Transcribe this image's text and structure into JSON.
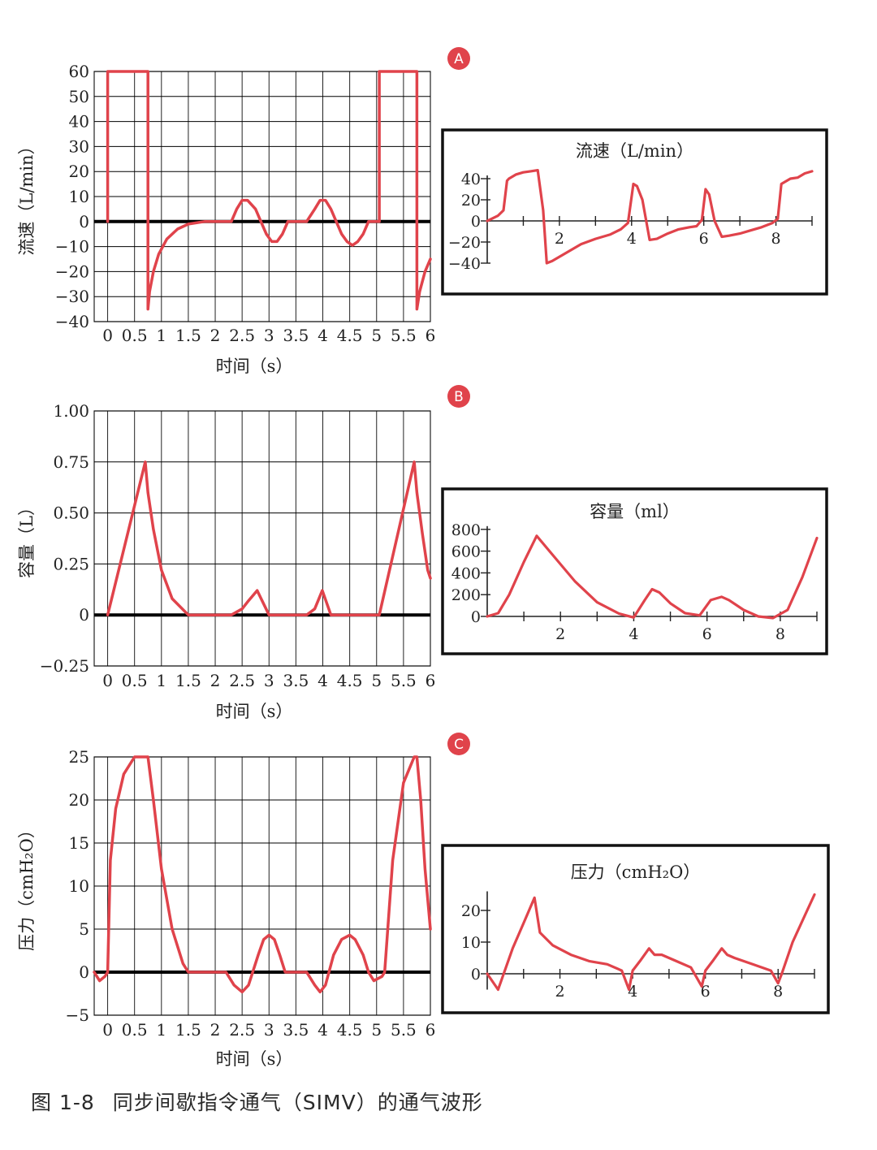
{
  "colors": {
    "curve": "#e0434b",
    "badge": "#e0434b",
    "axis": "#000000",
    "grid": "#222222"
  },
  "caption": {
    "figure_number": "图 1-8",
    "text": "同步间歇指令通气（SIMV）的通气波形"
  },
  "chart_data": [
    {
      "id": "A-main",
      "panel": "A",
      "type": "line",
      "ylabel": "流速（L/min）",
      "xlabel": "时间（s）",
      "xlim": [
        -0.25,
        6
      ],
      "ylim": [
        -40,
        60
      ],
      "xticks": [
        "0",
        "0.5",
        "1",
        "1.5",
        "2",
        "2.5",
        "3",
        "3.5",
        "4",
        "4.5",
        "5",
        "5.5",
        "6"
      ],
      "yticks": [
        "60",
        "50",
        "40",
        "30",
        "20",
        "10",
        "0",
        "−10",
        "−20",
        "−30",
        "−40"
      ],
      "x": [
        0,
        0,
        0.75,
        0.75,
        0.78,
        0.85,
        0.95,
        1.1,
        1.3,
        1.5,
        1.8,
        2.1,
        2.3,
        2.4,
        2.5,
        2.6,
        2.75,
        2.85,
        2.95,
        3.05,
        3.15,
        3.25,
        3.35,
        3.7,
        3.85,
        3.95,
        4.05,
        4.15,
        4.25,
        4.35,
        4.45,
        4.55,
        4.65,
        4.75,
        4.85,
        5.05,
        5.05,
        5.75,
        5.75,
        5.8,
        5.9,
        6
      ],
      "y": [
        0,
        60,
        60,
        -35,
        -28,
        -20,
        -13,
        -7,
        -3,
        -1,
        0,
        0,
        0,
        5,
        8.5,
        8.5,
        5,
        0,
        -5,
        -8,
        -8,
        -5,
        0,
        0,
        5,
        8.5,
        8.5,
        5,
        0,
        -5,
        -8,
        -9.5,
        -8,
        -5,
        0,
        0,
        60,
        60,
        -35,
        -28,
        -20,
        -15
      ]
    },
    {
      "id": "A-inset",
      "panel": "A",
      "type": "line",
      "title": "流速（L/min）",
      "xlim": [
        0,
        9
      ],
      "ylim": [
        -40,
        40
      ],
      "xticks": [
        "2",
        "4",
        "6",
        "8"
      ],
      "yticks": [
        "40",
        "20",
        "0",
        "−20",
        "−40"
      ],
      "x": [
        0,
        0.3,
        0.45,
        0.55,
        0.6,
        0.8,
        1.0,
        1.2,
        1.4,
        1.55,
        1.65,
        1.8,
        2.2,
        2.6,
        3.0,
        3.4,
        3.7,
        3.9,
        4.05,
        4.15,
        4.3,
        4.5,
        4.7,
        5.0,
        5.3,
        5.6,
        5.8,
        5.95,
        6.05,
        6.15,
        6.3,
        6.5,
        6.7,
        7.0,
        7.3,
        7.6,
        7.9,
        8.05,
        8.15,
        8.4,
        8.6,
        8.8,
        9
      ],
      "y": [
        0,
        5,
        10,
        38,
        40,
        44,
        46,
        47,
        48,
        10,
        -40,
        -38,
        -30,
        -22,
        -17,
        -13,
        -8,
        -2,
        35,
        33,
        20,
        -18,
        -17,
        -12,
        -8,
        -6,
        -5,
        1,
        30,
        25,
        0,
        -15,
        -14,
        -12,
        -9,
        -6,
        -2,
        2,
        35,
        40,
        41,
        45,
        47
      ]
    },
    {
      "id": "B-main",
      "panel": "B",
      "type": "line",
      "ylabel": "容量（L）",
      "xlabel": "时间（s）",
      "xlim": [
        -0.25,
        6
      ],
      "ylim": [
        -0.25,
        1.0
      ],
      "xticks": [
        "0",
        "0.5",
        "1",
        "1.5",
        "2",
        "2.5",
        "3",
        "3.5",
        "4",
        "4.5",
        "5",
        "5.5",
        "6"
      ],
      "yticks": [
        "1.00",
        "0.75",
        "0.50",
        "0.25",
        "0",
        "−0.25"
      ],
      "x": [
        0,
        0.7,
        0.75,
        0.85,
        1.0,
        1.2,
        1.5,
        2.3,
        2.5,
        2.62,
        2.78,
        3.0,
        3.7,
        3.85,
        3.99,
        4.15,
        4.4,
        5.05,
        5.7,
        5.75,
        5.85,
        5.95,
        6
      ],
      "y": [
        0,
        0.75,
        0.6,
        0.42,
        0.22,
        0.08,
        0,
        0,
        0.03,
        0.07,
        0.12,
        0,
        0,
        0.03,
        0.12,
        0,
        0,
        0,
        0.75,
        0.6,
        0.4,
        0.22,
        0.18
      ]
    },
    {
      "id": "B-inset",
      "panel": "B",
      "type": "line",
      "title": "容量（ml）",
      "xlim": [
        0,
        9
      ],
      "ylim": [
        0,
        800
      ],
      "xticks": [
        "2",
        "4",
        "6",
        "8"
      ],
      "yticks": [
        "800",
        "600",
        "400",
        "200",
        "0"
      ],
      "x": [
        0,
        0.3,
        0.6,
        1.0,
        1.35,
        1.8,
        2.4,
        3.0,
        3.6,
        4.0,
        4.3,
        4.5,
        4.7,
        5.0,
        5.4,
        5.8,
        6.1,
        6.4,
        6.6,
        7.0,
        7.4,
        7.8,
        8.2,
        8.6,
        9
      ],
      "y": [
        0,
        30,
        200,
        500,
        740,
        560,
        320,
        130,
        25,
        -10,
        150,
        250,
        220,
        120,
        30,
        10,
        150,
        180,
        150,
        60,
        0,
        -15,
        60,
        360,
        720
      ]
    },
    {
      "id": "C-main",
      "panel": "C",
      "type": "line",
      "ylabel": "压力（cmH₂O）",
      "xlabel": "时间（s）",
      "xlim": [
        -0.25,
        6
      ],
      "ylim": [
        -5,
        25
      ],
      "xticks": [
        "0",
        "0.5",
        "1",
        "1.5",
        "2",
        "2.5",
        "3",
        "3.5",
        "4",
        "4.5",
        "5",
        "5.5",
        "6"
      ],
      "yticks": [
        "25",
        "20",
        "15",
        "10",
        "5",
        "0",
        "−5"
      ],
      "x": [
        -0.25,
        -0.15,
        -0.05,
        0,
        0.05,
        0.15,
        0.3,
        0.5,
        0.7,
        0.75,
        0.85,
        1.0,
        1.2,
        1.4,
        1.5,
        2.2,
        2.35,
        2.5,
        2.62,
        2.8,
        2.9,
        3.0,
        3.1,
        3.2,
        3.3,
        3.4,
        3.7,
        3.85,
        3.95,
        4.05,
        4.2,
        4.35,
        4.5,
        4.6,
        4.75,
        4.85,
        4.95,
        5.1,
        5.15,
        5.3,
        5.5,
        5.7,
        5.75,
        5.82,
        5.9,
        6
      ],
      "y": [
        0,
        -1,
        -0.5,
        0,
        13,
        19,
        23,
        25,
        25,
        25,
        20,
        12,
        5,
        1,
        0,
        0,
        -1.5,
        -2.3,
        -1.5,
        2,
        3.8,
        4.3,
        3.8,
        2,
        0,
        0,
        0,
        -1.5,
        -2.3,
        -1.5,
        2,
        3.8,
        4.3,
        3.8,
        2,
        0,
        -1,
        -0.5,
        0,
        13,
        22,
        25,
        25,
        20,
        12,
        5
      ]
    },
    {
      "id": "C-inset",
      "panel": "C",
      "type": "line",
      "title": "压力（cmH₂O）",
      "xlim": [
        0,
        9
      ],
      "ylim": [
        -5,
        25
      ],
      "xticks": [
        "2",
        "4",
        "6",
        "8"
      ],
      "yticks": [
        "20",
        "10",
        "0"
      ],
      "x": [
        0,
        0.3,
        0.7,
        1.0,
        1.3,
        1.45,
        1.8,
        2.3,
        2.8,
        3.3,
        3.7,
        3.9,
        4.0,
        4.2,
        4.45,
        4.6,
        4.8,
        5.2,
        5.6,
        5.9,
        6.0,
        6.2,
        6.45,
        6.6,
        6.8,
        7.3,
        7.8,
        8.0,
        8.1,
        8.4,
        8.8,
        9
      ],
      "y": [
        0,
        -5,
        8,
        16,
        24,
        13,
        9,
        6,
        4,
        3,
        1,
        -5,
        1,
        4,
        8,
        6,
        6,
        4,
        2,
        -4,
        1,
        4,
        8,
        6,
        5,
        3,
        1,
        -3,
        0,
        10,
        20,
        25
      ]
    }
  ],
  "panels": [
    {
      "label": "A",
      "xlabel_text": "时间（s）",
      "inset_title": "流速（L/min）"
    },
    {
      "label": "B",
      "xlabel_text": "时间（s）",
      "inset_title": "容量（ml）"
    },
    {
      "label": "C",
      "xlabel_text": "时间（s）",
      "inset_title": "压力（cmH₂O）"
    }
  ]
}
